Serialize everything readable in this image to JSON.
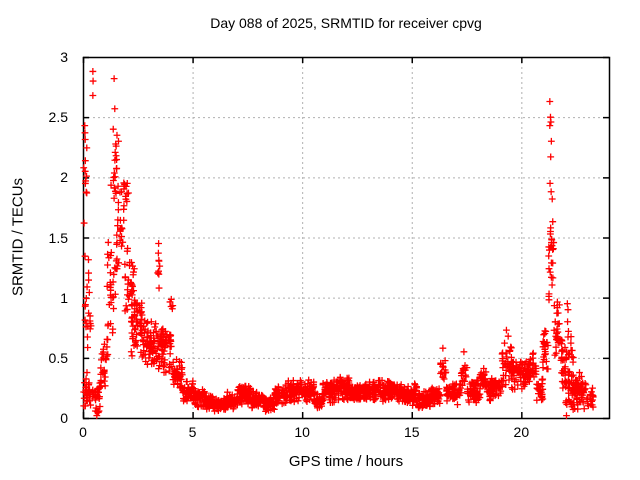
{
  "chart_data": {
    "type": "scatter",
    "title": "Day 088 of 2025, SRMTID for receiver cpvg",
    "xlabel": "GPS time / hours",
    "ylabel": "SRMTID / TECUs",
    "xlim": [
      0,
      24
    ],
    "ylim": [
      0,
      3
    ],
    "xticks": [
      0,
      5,
      10,
      15,
      20
    ],
    "xtick_labels": [
      "0",
      "5",
      "10",
      "15",
      "20"
    ],
    "yticks": [
      0,
      0.5,
      1,
      1.5,
      2,
      2.5,
      3
    ],
    "ytick_labels": [
      "0",
      "0.5",
      "1",
      "1.5",
      "2",
      "2.5",
      "3"
    ],
    "grid": true,
    "grid_style": "dotted",
    "legend": "none",
    "marker": "plus",
    "marker_color": "#ff0000",
    "border_color": "#000000",
    "grid_color": "#b0b0b0",
    "background": "#ffffff",
    "series_name": "SRMTID",
    "seed": 88,
    "notable_points": [
      [
        0.08,
        2.43
      ],
      [
        0.09,
        2.37
      ],
      [
        0.1,
        2.05
      ],
      [
        0.12,
        1.97
      ],
      [
        0.05,
        1.62
      ],
      [
        0.45,
        2.88
      ],
      [
        0.46,
        2.8
      ],
      [
        0.45,
        2.68
      ],
      [
        1.42,
        2.82
      ],
      [
        1.45,
        2.57
      ],
      [
        1.38,
        2.4
      ],
      [
        1.55,
        2.35
      ],
      [
        1.62,
        2.3
      ],
      [
        2.02,
        1.95
      ],
      [
        3.45,
        1.45
      ],
      [
        3.44,
        1.37
      ],
      [
        3.46,
        1.31
      ],
      [
        3.45,
        1.22
      ],
      [
        3.47,
        1.08
      ],
      [
        16.42,
        0.58
      ],
      [
        17.38,
        0.55
      ],
      [
        19.32,
        0.73
      ],
      [
        19.4,
        0.68
      ],
      [
        21.3,
        2.63
      ],
      [
        21.33,
        2.5
      ],
      [
        21.35,
        2.46
      ],
      [
        21.3,
        2.43
      ],
      [
        21.37,
        2.3
      ],
      [
        21.34,
        2.17
      ],
      [
        21.31,
        1.95
      ],
      [
        21.36,
        1.88
      ],
      [
        21.41,
        1.82
      ],
      [
        21.33,
        1.55
      ],
      [
        21.39,
        1.48
      ],
      [
        21.43,
        1.4
      ],
      [
        22.1,
        0.95
      ],
      [
        22.13,
        0.9
      ],
      [
        22.11,
        0.8
      ],
      [
        22.15,
        0.72
      ],
      [
        0.63,
        0.02
      ],
      [
        22.06,
        0.02
      ]
    ],
    "bands_format": "[x_start_hours, x_end_hours, y_center_TECUs, y_half_spread_TECUs, n_points]",
    "bands": [
      [
        0.03,
        0.35,
        0.22,
        0.18,
        30
      ],
      [
        0.05,
        0.3,
        0.95,
        0.5,
        16
      ],
      [
        0.03,
        0.18,
        2.1,
        0.38,
        8
      ],
      [
        0.28,
        0.42,
        0.8,
        0.12,
        5
      ],
      [
        0.4,
        0.78,
        0.2,
        0.15,
        22
      ],
      [
        0.55,
        0.8,
        0.06,
        0.05,
        7
      ],
      [
        0.8,
        1.15,
        0.45,
        0.28,
        26
      ],
      [
        1.1,
        1.5,
        1.0,
        0.5,
        30
      ],
      [
        1.25,
        1.62,
        2.0,
        0.42,
        20
      ],
      [
        1.5,
        1.95,
        1.5,
        0.38,
        26
      ],
      [
        1.62,
        2.1,
        1.88,
        0.14,
        12
      ],
      [
        1.9,
        2.4,
        1.1,
        0.38,
        34
      ],
      [
        2.2,
        2.7,
        0.8,
        0.3,
        40
      ],
      [
        2.6,
        3.15,
        0.65,
        0.25,
        46
      ],
      [
        3.05,
        3.5,
        0.6,
        0.22,
        40
      ],
      [
        3.38,
        3.5,
        1.25,
        0.2,
        5
      ],
      [
        3.5,
        4.08,
        0.64,
        0.12,
        50
      ],
      [
        3.55,
        4.1,
        0.42,
        0.09,
        12
      ],
      [
        3.9,
        4.1,
        0.92,
        0.07,
        5
      ],
      [
        4.08,
        4.55,
        0.37,
        0.14,
        40
      ],
      [
        4.55,
        5.05,
        0.22,
        0.1,
        45
      ],
      [
        5.05,
        5.55,
        0.16,
        0.09,
        50
      ],
      [
        5.55,
        6.15,
        0.12,
        0.07,
        55
      ],
      [
        6.15,
        6.55,
        0.11,
        0.06,
        40
      ],
      [
        6.55,
        7.05,
        0.15,
        0.08,
        50
      ],
      [
        7.05,
        7.65,
        0.19,
        0.09,
        58
      ],
      [
        7.65,
        8.25,
        0.15,
        0.08,
        58
      ],
      [
        8.25,
        8.75,
        0.12,
        0.07,
        48
      ],
      [
        8.75,
        9.35,
        0.19,
        0.1,
        58
      ],
      [
        9.35,
        10.05,
        0.23,
        0.1,
        68
      ],
      [
        10.05,
        10.55,
        0.22,
        0.1,
        48
      ],
      [
        10.55,
        10.95,
        0.14,
        0.08,
        40
      ],
      [
        10.95,
        11.55,
        0.22,
        0.1,
        58
      ],
      [
        11.55,
        12.15,
        0.25,
        0.11,
        58
      ],
      [
        12.15,
        12.75,
        0.2,
        0.09,
        58
      ],
      [
        12.75,
        13.35,
        0.22,
        0.1,
        58
      ],
      [
        13.35,
        14.05,
        0.23,
        0.1,
        68
      ],
      [
        14.05,
        14.65,
        0.22,
        0.1,
        58
      ],
      [
        14.65,
        15.25,
        0.19,
        0.1,
        58
      ],
      [
        15.25,
        15.85,
        0.16,
        0.09,
        58
      ],
      [
        15.85,
        16.3,
        0.19,
        0.1,
        45
      ],
      [
        16.3,
        16.58,
        0.4,
        0.16,
        16
      ],
      [
        16.58,
        17.25,
        0.2,
        0.1,
        58
      ],
      [
        17.25,
        17.52,
        0.38,
        0.15,
        16
      ],
      [
        17.52,
        18.12,
        0.23,
        0.11,
        55
      ],
      [
        18.12,
        18.48,
        0.32,
        0.13,
        30
      ],
      [
        18.48,
        19.12,
        0.24,
        0.11,
        58
      ],
      [
        19.12,
        19.58,
        0.45,
        0.22,
        40
      ],
      [
        19.58,
        20.32,
        0.37,
        0.15,
        68
      ],
      [
        20.32,
        20.68,
        0.42,
        0.15,
        34
      ],
      [
        20.68,
        20.98,
        0.25,
        0.12,
        26
      ],
      [
        20.98,
        21.22,
        0.55,
        0.25,
        24
      ],
      [
        21.22,
        21.48,
        1.35,
        0.45,
        22
      ],
      [
        21.48,
        21.78,
        0.75,
        0.35,
        26
      ],
      [
        21.78,
        22.08,
        0.45,
        0.25,
        26
      ],
      [
        22.0,
        22.58,
        0.22,
        0.18,
        60
      ],
      [
        22.1,
        22.38,
        0.6,
        0.17,
        10
      ],
      [
        22.58,
        22.98,
        0.25,
        0.18,
        34
      ],
      [
        22.98,
        23.28,
        0.15,
        0.12,
        18
      ]
    ]
  }
}
